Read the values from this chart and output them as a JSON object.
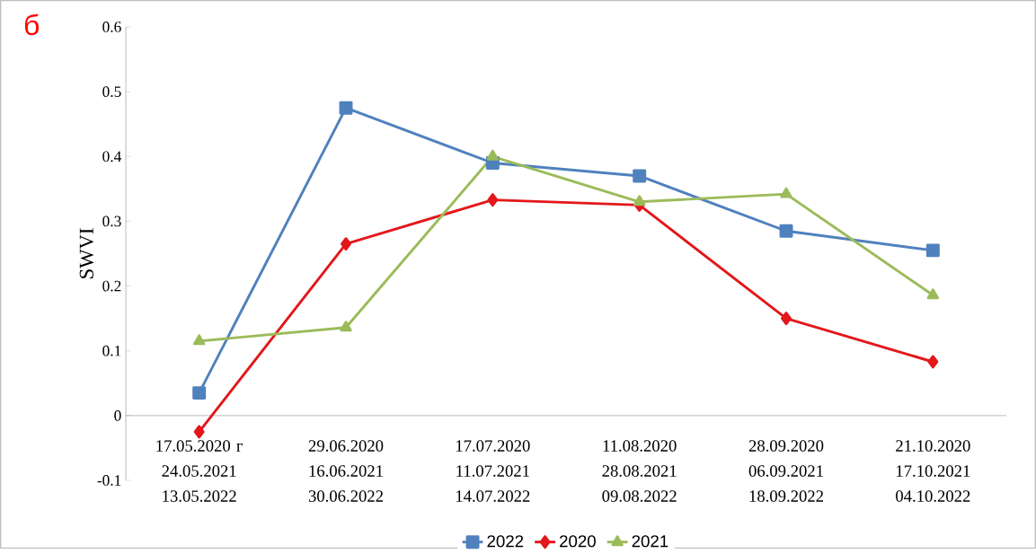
{
  "chart_data": {
    "type": "line",
    "ylabel": "SWVI",
    "categories": [
      "17.05.2020 г 24.05.2021 13.05.2022",
      "29.06.2020 16.06.2021 30.06.2022",
      "17.07.2020 11.07.2021 14.07.2022",
      "11.08.2020 28.08.2021 09.08.2022",
      "28.09.2020 06.09.2021 18.09.2022",
      "21.10.2020 17.10.2021 04.10.2022"
    ],
    "series": [
      {
        "name": "2022",
        "color": "#4f81bd",
        "marker": "square",
        "values": [
          0.035,
          0.475,
          0.39,
          0.37,
          0.285,
          0.255
        ]
      },
      {
        "name": "2020",
        "color": "#e3171b",
        "marker": "diamond",
        "values": [
          -0.025,
          0.265,
          0.333,
          0.325,
          0.15,
          0.083
        ]
      },
      {
        "name": "2021",
        "color": "#9bbb59",
        "marker": "triangle",
        "values": [
          0.115,
          0.136,
          0.4,
          0.33,
          0.342,
          0.186
        ]
      }
    ],
    "ylim": [
      -0.1,
      0.6
    ],
    "yticks": [
      -0.1,
      0,
      0.1,
      0.2,
      0.3,
      0.4,
      0.5,
      0.6
    ],
    "grid": false,
    "legend": "bottom",
    "line_style": "solid",
    "annotations": [
      "б"
    ]
  }
}
